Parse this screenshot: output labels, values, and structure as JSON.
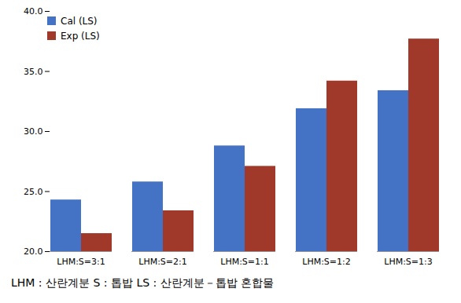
{
  "chart_data": {
    "type": "bar",
    "categories": [
      "LHM:S=3:1",
      "LHM:S=2:1",
      "LHM:S=1:1",
      "LHM:S=1:2",
      "LHM:S=1:3"
    ],
    "series": [
      {
        "name": "Cal (LS)",
        "color": "#4472C4",
        "values": [
          24.3,
          25.8,
          28.8,
          31.9,
          33.4
        ]
      },
      {
        "name": "Exp (LS)",
        "color": "#A0392A",
        "values": [
          21.5,
          23.4,
          27.1,
          34.2,
          37.7
        ]
      }
    ],
    "ylim": [
      20.0,
      40.0
    ],
    "yticks": [
      {
        "value": 20.0,
        "label": "20.0"
      },
      {
        "value": 25.0,
        "label": "25.0"
      },
      {
        "value": 30.0,
        "label": "30.0"
      },
      {
        "value": 35.0,
        "label": "35.0"
      },
      {
        "value": 40.0,
        "label": "40.0"
      }
    ],
    "grid": false,
    "legend": "upper left",
    "caption": "LHM : 산란계분 S : 톱밥 LS : 산란계분－톱밥 혼합물"
  }
}
